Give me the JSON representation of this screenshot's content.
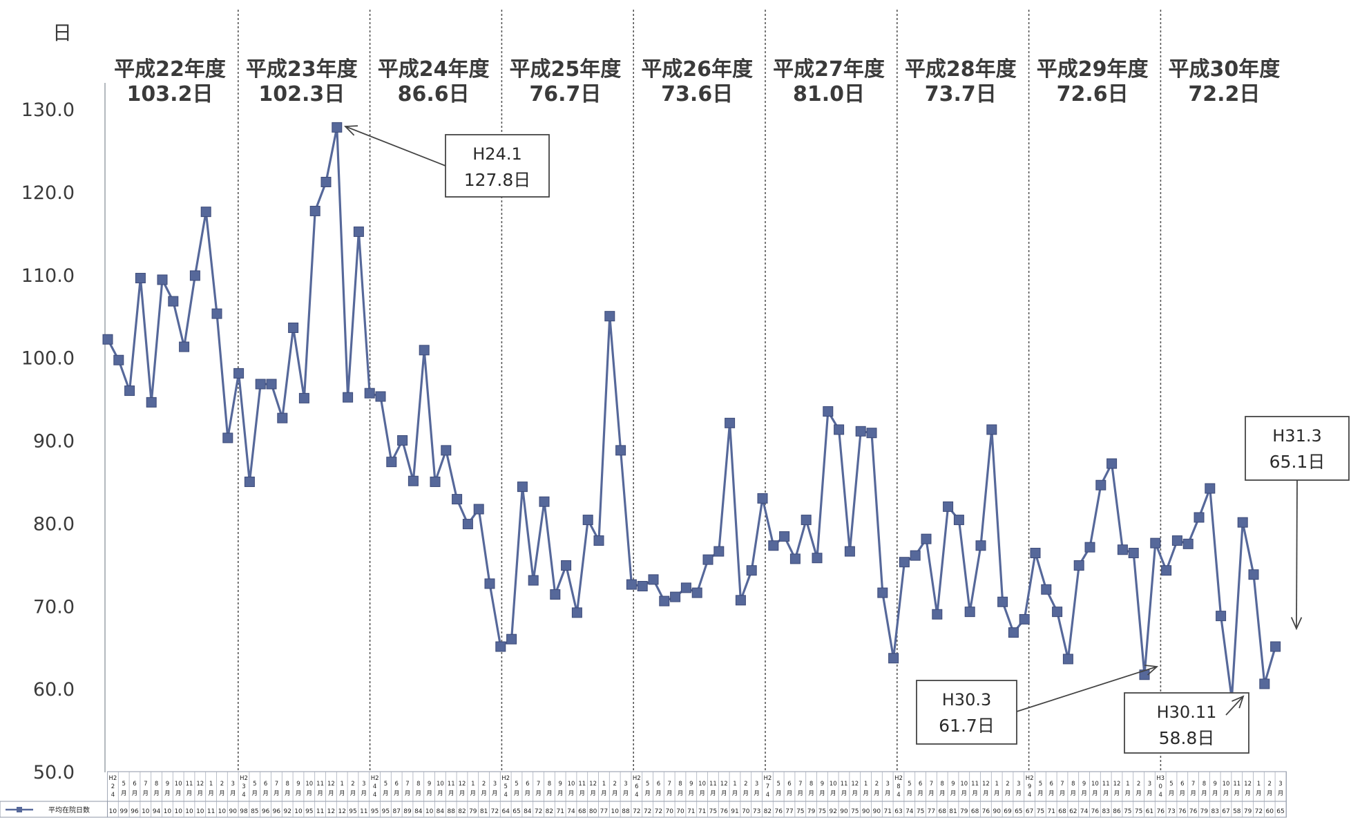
{
  "chart_data": {
    "type": "line",
    "ylabel": "日",
    "ylim": [
      50,
      130
    ],
    "yticks": [
      "130.0",
      "120.0",
      "110.0",
      "100.0",
      "90.0",
      "80.0",
      "70.0",
      "60.0",
      "50.0"
    ],
    "grid": false,
    "legend": {
      "placement": "bottom-left",
      "label": "平均在院日数"
    },
    "series_color": "#56689a",
    "fiscal_years": [
      {
        "name": "平成22年度",
        "average": "103.2日"
      },
      {
        "name": "平成23年度",
        "average": "102.3日"
      },
      {
        "name": "平成24年度",
        "average": "86.6日"
      },
      {
        "name": "平成25年度",
        "average": "76.7日"
      },
      {
        "name": "平成26年度",
        "average": "73.6日"
      },
      {
        "name": "平成27年度",
        "average": "81.0日"
      },
      {
        "name": "平成28年度",
        "average": "73.7日"
      },
      {
        "name": "平成29年度",
        "average": "72.6日"
      },
      {
        "name": "平成30年度",
        "average": "72.2日"
      }
    ],
    "month_labels": [
      [
        "H2",
        "2",
        "4"
      ],
      [
        "5",
        "月"
      ],
      [
        "6",
        "月"
      ],
      [
        "7",
        "月"
      ],
      [
        "8",
        "月"
      ],
      [
        "9",
        "月"
      ],
      [
        "10",
        "月"
      ],
      [
        "11",
        "月"
      ],
      [
        "12",
        "月"
      ],
      [
        "1",
        "月"
      ],
      [
        "2",
        "月"
      ],
      [
        "3",
        "月"
      ],
      [
        "H2",
        "3",
        "4"
      ],
      [
        "5",
        "月"
      ],
      [
        "6",
        "月"
      ],
      [
        "7",
        "月"
      ],
      [
        "8",
        "月"
      ],
      [
        "9",
        "月"
      ],
      [
        "10",
        "月"
      ],
      [
        "11",
        "月"
      ],
      [
        "12",
        "月"
      ],
      [
        "1",
        "月"
      ],
      [
        "2",
        "月"
      ],
      [
        "3",
        "月"
      ],
      [
        "H2",
        "4",
        "4"
      ],
      [
        "5",
        "月"
      ],
      [
        "6",
        "月"
      ],
      [
        "7",
        "月"
      ],
      [
        "8",
        "月"
      ],
      [
        "9",
        "月"
      ],
      [
        "10",
        "月"
      ],
      [
        "11",
        "月"
      ],
      [
        "12",
        "月"
      ],
      [
        "1",
        "月"
      ],
      [
        "2",
        "月"
      ],
      [
        "3",
        "月"
      ],
      [
        "H2",
        "5",
        "4"
      ],
      [
        "5",
        "月"
      ],
      [
        "6",
        "月"
      ],
      [
        "7",
        "月"
      ],
      [
        "8",
        "月"
      ],
      [
        "9",
        "月"
      ],
      [
        "10",
        "月"
      ],
      [
        "11",
        "月"
      ],
      [
        "12",
        "月"
      ],
      [
        "1",
        "月"
      ],
      [
        "2",
        "月"
      ],
      [
        "3",
        "月"
      ],
      [
        "H2",
        "6",
        "4"
      ],
      [
        "5",
        "月"
      ],
      [
        "6",
        "月"
      ],
      [
        "7",
        "月"
      ],
      [
        "8",
        "月"
      ],
      [
        "9",
        "月"
      ],
      [
        "10",
        "月"
      ],
      [
        "11",
        "月"
      ],
      [
        "12",
        "月"
      ],
      [
        "1",
        "月"
      ],
      [
        "2",
        "月"
      ],
      [
        "3",
        "月"
      ],
      [
        "H2",
        "7",
        "4"
      ],
      [
        "5",
        "月"
      ],
      [
        "6",
        "月"
      ],
      [
        "7",
        "月"
      ],
      [
        "8",
        "月"
      ],
      [
        "9",
        "月"
      ],
      [
        "10",
        "月"
      ],
      [
        "11",
        "月"
      ],
      [
        "12",
        "月"
      ],
      [
        "1",
        "月"
      ],
      [
        "2",
        "月"
      ],
      [
        "3",
        "月"
      ],
      [
        "H2",
        "8",
        "4"
      ],
      [
        "5",
        "月"
      ],
      [
        "6",
        "月"
      ],
      [
        "7",
        "月"
      ],
      [
        "8",
        "月"
      ],
      [
        "9",
        "月"
      ],
      [
        "10",
        "月"
      ],
      [
        "11",
        "月"
      ],
      [
        "12",
        "月"
      ],
      [
        "1",
        "月"
      ],
      [
        "2",
        "月"
      ],
      [
        "3",
        "月"
      ],
      [
        "H2",
        "9",
        "4"
      ],
      [
        "5",
        "月"
      ],
      [
        "6",
        "月"
      ],
      [
        "7",
        "月"
      ],
      [
        "8",
        "月"
      ],
      [
        "9",
        "月"
      ],
      [
        "10",
        "月"
      ],
      [
        "11",
        "月"
      ],
      [
        "12",
        "月"
      ],
      [
        "1",
        "月"
      ],
      [
        "2",
        "月"
      ],
      [
        "3",
        "月"
      ],
      [
        "H3",
        "0",
        "4"
      ],
      [
        "5",
        "月"
      ],
      [
        "6",
        "月"
      ],
      [
        "7",
        "月"
      ],
      [
        "8",
        "月"
      ],
      [
        "9",
        "月"
      ],
      [
        "10",
        "月"
      ],
      [
        "11",
        "月"
      ],
      [
        "12",
        "月"
      ],
      [
        "1",
        "月"
      ],
      [
        "2",
        "月"
      ],
      [
        "3",
        "月"
      ]
    ],
    "series": [
      {
        "values": [
          102.2,
          99.7,
          96.0,
          109.6,
          94.6,
          109.4,
          106.8,
          101.3,
          109.9,
          117.6,
          105.3,
          90.3,
          98.1,
          85.0,
          96.8,
          96.8,
          92.7,
          103.6,
          95.1,
          117.7,
          121.2,
          127.8,
          95.2,
          115.2,
          95.7,
          95.3,
          87.4,
          90.0,
          85.1,
          100.9,
          85.0,
          88.8,
          82.9,
          79.9,
          81.7,
          72.7,
          65.1,
          66.0,
          84.4,
          73.1,
          82.6,
          71.4,
          74.9,
          69.2,
          80.4,
          77.9,
          105.0,
          88.8,
          72.6,
          72.4,
          73.2,
          70.6,
          71.1,
          72.2,
          71.6,
          75.6,
          76.6,
          92.1,
          70.7,
          74.3,
          83.0,
          77.3,
          78.4,
          75.7,
          80.4,
          75.8,
          93.5,
          91.3,
          76.6,
          91.1,
          90.9,
          71.6,
          63.7,
          75.3,
          76.1,
          78.1,
          69.0,
          82.0,
          80.4,
          69.3,
          77.3,
          91.3,
          70.5,
          66.8,
          68.4,
          76.4,
          72.0,
          69.3,
          63.6,
          74.9,
          77.1,
          84.6,
          87.2,
          76.8,
          76.4,
          61.7,
          77.6,
          74.3,
          77.9,
          77.5,
          80.7,
          84.2,
          68.8,
          58.8,
          80.1,
          73.8,
          60.6,
          65.1
        ]
      }
    ],
    "table_row": [
      "10",
      "99",
      "96",
      "10",
      "94",
      "10",
      "10",
      "10",
      "10",
      "11",
      "10",
      "90",
      "98",
      "85",
      "96",
      "96",
      "92",
      "10",
      "95",
      "11",
      "12",
      "12",
      "95",
      "11",
      "95",
      "95",
      "87",
      "89",
      "84",
      "10",
      "84",
      "88",
      "82",
      "79",
      "81",
      "72",
      "64",
      "65",
      "84",
      "72",
      "82",
      "71",
      "74",
      "68",
      "80",
      "77",
      "10",
      "88",
      "72",
      "72",
      "72",
      "70",
      "70",
      "71",
      "71",
      "75",
      "76",
      "91",
      "70",
      "73",
      "82",
      "76",
      "77",
      "75",
      "79",
      "75",
      "92",
      "90",
      "75",
      "90",
      "90",
      "71",
      "63",
      "74",
      "75",
      "77",
      "68",
      "81",
      "79",
      "68",
      "76",
      "90",
      "69",
      "65",
      "67",
      "75",
      "71",
      "68",
      "62",
      "74",
      "76",
      "83",
      "86",
      "75",
      "75",
      "61",
      "76",
      "73",
      "76",
      "76",
      "79",
      "83",
      "67",
      "58",
      "79",
      "72",
      "60",
      "65"
    ],
    "annotations": [
      {
        "lines": [
          "H24.1",
          "127.8日"
        ],
        "index": 21
      },
      {
        "lines": [
          "H30.3",
          "61.7日"
        ],
        "index": 95
      },
      {
        "lines": [
          "H30.11",
          "58.8日"
        ],
        "index": 103
      },
      {
        "lines": [
          "H31.3",
          "65.1日"
        ],
        "index": 107
      }
    ]
  }
}
